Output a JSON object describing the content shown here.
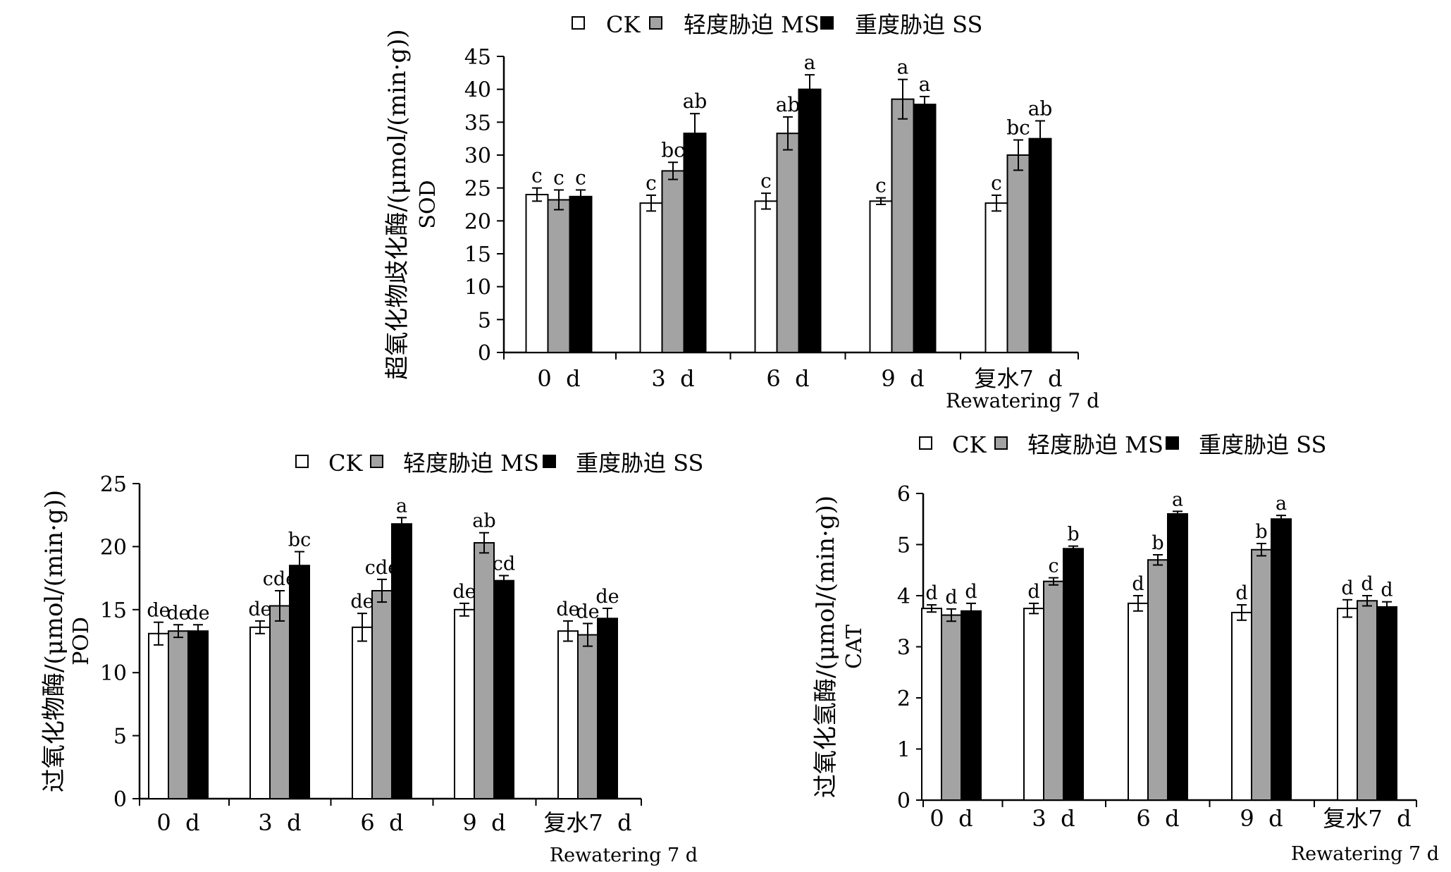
{
  "legend": {
    "ck": "CK",
    "ms": "轻度胁迫 MS",
    "ss": "重度胁迫 SS"
  },
  "colors": {
    "ck": "#ffffff",
    "ms": "#a3a3a3",
    "ss": "#000000"
  },
  "rewatering_label": "Rewatering 7 d",
  "chart_data": [
    {
      "type": "bar",
      "categories": [
        "0  d",
        "3  d",
        "6  d",
        "9  d",
        "复水7  d"
      ],
      "ylabel": "超氧化物歧化酶/(μmol/(min·g))",
      "ylabel_short": "SOD",
      "ylim": [
        0,
        45
      ],
      "yticks": [
        0,
        5,
        10,
        15,
        20,
        25,
        30,
        35,
        40,
        45
      ],
      "series": [
        {
          "name": "CK",
          "values": [
            24.0,
            22.7,
            23.0,
            23.0,
            22.7
          ],
          "errors": [
            1.0,
            1.2,
            1.2,
            0.5,
            1.2
          ],
          "letters": [
            "c",
            "c",
            "c",
            "c",
            "c"
          ]
        },
        {
          "name": "轻度胁迫 MS",
          "values": [
            23.2,
            27.6,
            33.3,
            38.5,
            30.0
          ],
          "errors": [
            1.5,
            1.3,
            2.5,
            3.0,
            2.3
          ],
          "letters": [
            "c",
            "bc",
            "ab",
            "a",
            "bc"
          ]
        },
        {
          "name": "重度胁迫 SS",
          "values": [
            23.7,
            33.3,
            40.0,
            37.7,
            32.5
          ],
          "errors": [
            1.0,
            3.0,
            2.2,
            1.2,
            2.7
          ],
          "letters": [
            "c",
            "ab",
            "a",
            "a",
            "ab"
          ]
        }
      ]
    },
    {
      "type": "bar",
      "categories": [
        "0  d",
        "3  d",
        "6  d",
        "9  d",
        "复水7  d"
      ],
      "ylabel": "过氧化物酶/(μmol/(min·g))",
      "ylabel_short": "POD",
      "ylim": [
        0,
        25
      ],
      "yticks": [
        0,
        5,
        10,
        15,
        20,
        25
      ],
      "series": [
        {
          "name": "CK",
          "values": [
            13.1,
            13.6,
            13.6,
            15.0,
            13.3
          ],
          "errors": [
            0.9,
            0.5,
            1.1,
            0.5,
            0.8
          ],
          "letters": [
            "de",
            "de",
            "de",
            "de",
            "de"
          ]
        },
        {
          "name": "轻度胁迫 MS",
          "values": [
            13.3,
            15.3,
            16.5,
            20.3,
            13.0
          ],
          "errors": [
            0.5,
            1.2,
            0.9,
            0.8,
            0.9
          ],
          "letters": [
            "de",
            "cde",
            "cde",
            "ab",
            "de"
          ]
        },
        {
          "name": "重度胁迫 SS",
          "values": [
            13.3,
            18.5,
            21.8,
            17.3,
            14.3
          ],
          "errors": [
            0.5,
            1.1,
            0.5,
            0.4,
            0.8
          ],
          "letters": [
            "de",
            "bc",
            "a",
            "cd",
            "de"
          ]
        }
      ]
    },
    {
      "type": "bar",
      "categories": [
        "0  d",
        "3  d",
        "6  d",
        "9  d",
        "复水7  d"
      ],
      "ylabel": "过氧化氢酶/(μmol/(min·g))",
      "ylabel_short": "CAT",
      "ylim": [
        0,
        6
      ],
      "yticks": [
        0,
        1,
        2,
        3,
        4,
        5,
        6
      ],
      "series": [
        {
          "name": "CK",
          "values": [
            3.75,
            3.75,
            3.85,
            3.67,
            3.75
          ],
          "errors": [
            0.07,
            0.1,
            0.15,
            0.15,
            0.17
          ],
          "letters": [
            "d",
            "d",
            "d",
            "d",
            "d"
          ]
        },
        {
          "name": "轻度胁迫 MS",
          "values": [
            3.62,
            4.28,
            4.7,
            4.9,
            3.9
          ],
          "errors": [
            0.12,
            0.07,
            0.1,
            0.12,
            0.1
          ],
          "letters": [
            "d",
            "c",
            "b",
            "b",
            "d"
          ]
        },
        {
          "name": "重度胁迫 SS",
          "values": [
            3.7,
            4.92,
            5.6,
            5.5,
            3.78
          ],
          "errors": [
            0.15,
            0.05,
            0.05,
            0.07,
            0.1
          ],
          "letters": [
            "d",
            "b",
            "a",
            "a",
            "d"
          ]
        }
      ]
    }
  ]
}
